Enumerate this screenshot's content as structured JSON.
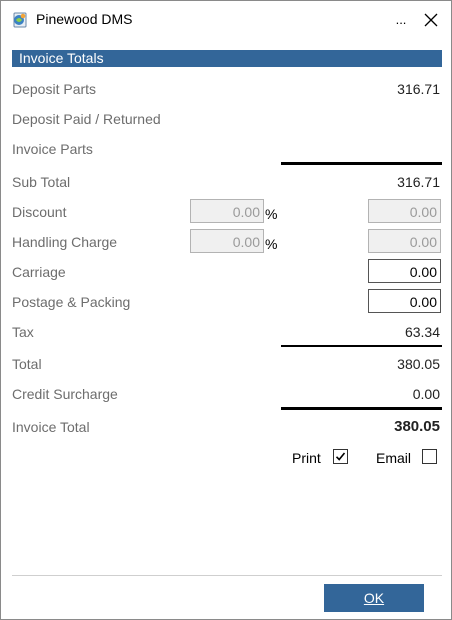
{
  "window": {
    "title": "Pinewood DMS",
    "minimize_glyph": "..."
  },
  "section": {
    "title": "Invoice Totals"
  },
  "rows": {
    "deposit_parts": {
      "label": "Deposit Parts",
      "value": "316.71"
    },
    "deposit_paid_returned": {
      "label": "Deposit Paid / Returned",
      "value": ""
    },
    "invoice_parts": {
      "label": "Invoice Parts",
      "value": ""
    },
    "sub_total": {
      "label": "Sub Total",
      "value": "316.71"
    },
    "discount": {
      "label": "Discount",
      "percent": "0.00",
      "percent_symbol": "%",
      "amount": "0.00"
    },
    "handling_charge": {
      "label": "Handling Charge",
      "percent": "0.00",
      "percent_symbol": "%",
      "amount": "0.00"
    },
    "carriage": {
      "label": "Carriage",
      "amount": "0.00"
    },
    "postage_packing": {
      "label": "Postage & Packing",
      "amount": "0.00"
    },
    "tax": {
      "label": "Tax",
      "value": "63.34"
    },
    "total": {
      "label": "Total",
      "value": "380.05"
    },
    "credit_surcharge": {
      "label": "Credit Surcharge",
      "value": "0.00"
    },
    "invoice_total": {
      "label": "Invoice Total",
      "value": "380.05"
    }
  },
  "options": {
    "print": {
      "label": "Print",
      "checked": true
    },
    "email": {
      "label": "Email",
      "checked": false
    }
  },
  "buttons": {
    "ok_label": "OK"
  },
  "icons": {
    "app": "pinewood-app-icon",
    "close": "close-icon",
    "check": "checkmark-icon"
  },
  "colors": {
    "accent": "#336699",
    "label_text": "#6d6d6d"
  }
}
